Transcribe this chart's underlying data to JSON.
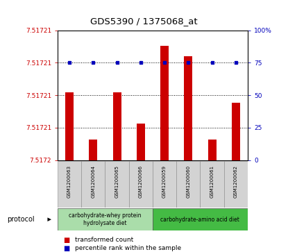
{
  "title": "GDS5390 / 1375068_at",
  "samples": [
    "GSM1200063",
    "GSM1200064",
    "GSM1200065",
    "GSM1200066",
    "GSM1200059",
    "GSM1200060",
    "GSM1200061",
    "GSM1200062"
  ],
  "bar_values": [
    7.517213,
    7.517204,
    7.517213,
    7.517207,
    7.517222,
    7.51722,
    7.517204,
    7.517211
  ],
  "percentile_values": [
    75,
    75,
    75,
    75,
    75,
    75,
    75,
    75
  ],
  "y_min": 7.5172,
  "y_max": 7.517225,
  "bar_color": "#cc0000",
  "dot_color": "#0000bb",
  "group1_color": "#aaddaa",
  "group2_color": "#44bb44",
  "group1_label": "carbohydrate-whey protein\nhydrolysate diet",
  "group2_label": "carbohydrate-amino acid diet",
  "legend_bar_label": "transformed count",
  "legend_dot_label": "percentile rank within the sample",
  "protocol_label": "protocol",
  "left_tick_labels": [
    "7.5172",
    "7.51721",
    "7.51721",
    "7.51721",
    "7.51721"
  ],
  "right_tick_labels": [
    "0",
    "25",
    "50",
    "75",
    "100%"
  ],
  "axis_color_left": "#cc0000",
  "axis_color_right": "#0000bb"
}
